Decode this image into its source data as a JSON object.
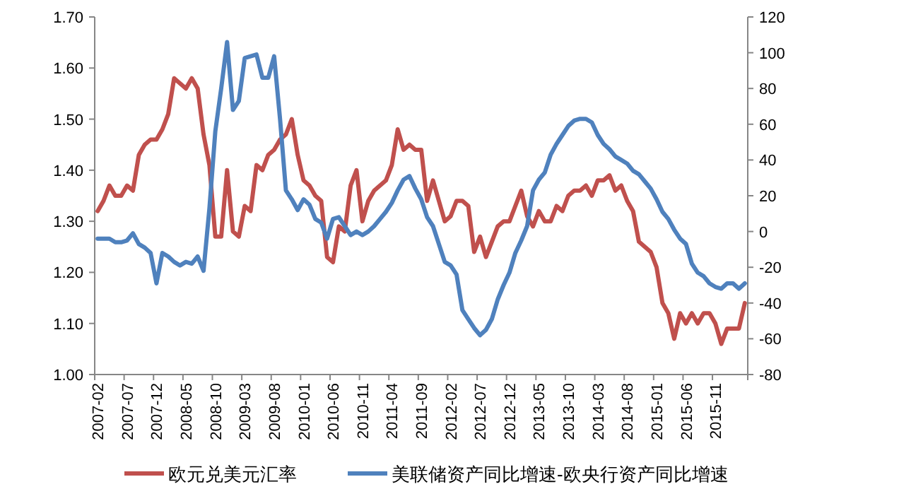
{
  "chart_data": {
    "type": "line",
    "legend": "bottom",
    "grid": false,
    "marker": "none",
    "line_style": "solid",
    "categories": [
      "2007-02",
      null,
      null,
      null,
      null,
      "2007-07",
      null,
      null,
      null,
      null,
      "2007-12",
      null,
      null,
      null,
      null,
      "2008-05",
      null,
      null,
      null,
      null,
      "2008-10",
      null,
      null,
      null,
      null,
      "2009-03",
      null,
      null,
      null,
      null,
      "2009-08",
      null,
      null,
      null,
      null,
      "2010-01",
      null,
      null,
      null,
      null,
      "2010-06",
      null,
      null,
      null,
      null,
      "2010-11",
      null,
      null,
      null,
      null,
      "2011-04",
      null,
      null,
      null,
      null,
      "2011-09",
      null,
      null,
      null,
      null,
      "2012-02",
      null,
      null,
      null,
      null,
      "2012-07",
      null,
      null,
      null,
      null,
      "2012-12",
      null,
      null,
      null,
      null,
      "2013-05",
      null,
      null,
      null,
      null,
      "2013-10",
      null,
      null,
      null,
      null,
      "2014-03",
      null,
      null,
      null,
      null,
      "2014-08",
      null,
      null,
      null,
      null,
      "2015-01",
      null,
      null,
      null,
      null,
      "2015-06",
      null,
      null,
      null,
      null,
      "2015-11",
      null,
      null,
      null,
      null,
      null
    ],
    "ylim": [
      1.0,
      1.7
    ],
    "yticks": [
      {
        "value": 1.0,
        "label": "1.00"
      },
      {
        "value": 1.1,
        "label": "1.10"
      },
      {
        "value": 1.2,
        "label": "1.20"
      },
      {
        "value": 1.3,
        "label": "1.30"
      },
      {
        "value": 1.4,
        "label": "1.40"
      },
      {
        "value": 1.5,
        "label": "1.50"
      },
      {
        "value": 1.6,
        "label": "1.60"
      },
      {
        "value": 1.7,
        "label": "1.70"
      }
    ],
    "y2lim": [
      -80,
      120
    ],
    "y2ticks": [
      -80,
      -60,
      -40,
      -20,
      0,
      20,
      40,
      60,
      80,
      100,
      120
    ],
    "series": [
      {
        "name": "欧元兑美元汇率",
        "color": "#c0504d",
        "values": [
          1.32,
          1.34,
          1.37,
          1.35,
          1.35,
          1.37,
          1.36,
          1.43,
          1.45,
          1.46,
          1.46,
          1.48,
          1.51,
          1.58,
          1.57,
          1.56,
          1.58,
          1.56,
          1.47,
          1.41,
          1.27,
          1.27,
          1.4,
          1.28,
          1.27,
          1.33,
          1.32,
          1.41,
          1.4,
          1.43,
          1.44,
          1.46,
          1.47,
          1.5,
          1.43,
          1.38,
          1.37,
          1.35,
          1.34,
          1.23,
          1.22,
          1.29,
          1.28,
          1.37,
          1.4,
          1.3,
          1.34,
          1.36,
          1.37,
          1.38,
          1.41,
          1.48,
          1.44,
          1.45,
          1.44,
          1.44,
          1.34,
          1.38,
          1.34,
          1.3,
          1.31,
          1.34,
          1.34,
          1.33,
          1.24,
          1.27,
          1.23,
          1.26,
          1.29,
          1.3,
          1.3,
          1.33,
          1.36,
          1.31,
          1.29,
          1.32,
          1.3,
          1.3,
          1.33,
          1.32,
          1.35,
          1.36,
          1.36,
          1.37,
          1.35,
          1.38,
          1.38,
          1.39,
          1.36,
          1.37,
          1.34,
          1.32,
          1.26,
          1.25,
          1.24,
          1.21,
          1.14,
          1.12,
          1.07,
          1.12,
          1.1,
          1.12,
          1.1,
          1.12,
          1.12,
          1.1,
          1.06,
          1.09,
          1.09,
          1.09,
          1.14
        ]
      },
      {
        "name": "美联储资产同比增速-欧央行资产同比增速",
        "color": "#4f81bd",
        "axis": "y2",
        "values": [
          -4,
          -4,
          -4,
          -6,
          -6,
          -5,
          -1,
          -7,
          -9,
          -12,
          -29,
          -12,
          -14,
          -17,
          -19,
          -17,
          -18,
          -14,
          -22,
          13,
          56,
          80,
          106,
          68,
          73,
          97,
          98,
          99,
          86,
          86,
          98,
          63,
          23,
          18,
          12,
          18,
          15,
          7,
          5,
          -4,
          7,
          8,
          3,
          -2,
          0,
          -2,
          0,
          3,
          7,
          11,
          16,
          23,
          29,
          31,
          24,
          18,
          8,
          3,
          -7,
          -17,
          -19,
          -24,
          -44,
          -49,
          -54,
          -58,
          -55,
          -49,
          -38,
          -30,
          -23,
          -12,
          -5,
          3,
          23,
          29,
          33,
          43,
          49,
          54,
          59,
          62,
          63,
          63,
          61,
          54,
          49,
          46,
          42,
          40,
          38,
          34,
          32,
          28,
          24,
          18,
          11,
          7,
          1,
          -4,
          -7,
          -18,
          -23,
          -25,
          -29,
          -31,
          -32,
          -29,
          -29,
          -32,
          -29
        ]
      }
    ]
  }
}
